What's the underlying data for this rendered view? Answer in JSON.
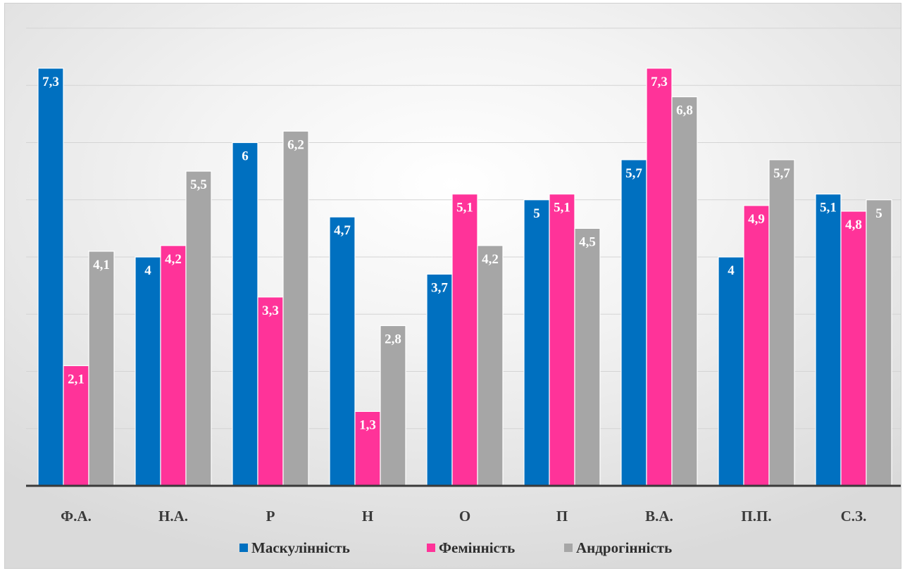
{
  "chart_data": {
    "type": "bar",
    "categories": [
      "Ф.А.",
      "Н.А.",
      "Р",
      "Н",
      "О",
      "П",
      "В.А.",
      "П.П.",
      "С.З."
    ],
    "series": [
      {
        "name": "Маскулінність",
        "color": "#0070c0",
        "values": [
          7.3,
          4,
          6,
          4.7,
          3.7,
          5,
          5.7,
          4,
          5.1
        ],
        "labels": [
          "7,3",
          "4",
          "6",
          "4,7",
          "3,7",
          "5",
          "5,7",
          "4",
          "5,1"
        ]
      },
      {
        "name": "Фемінність",
        "color": "#ff3399",
        "values": [
          2.1,
          4.2,
          3.3,
          1.3,
          5.1,
          5.1,
          7.3,
          4.9,
          4.8
        ],
        "labels": [
          "2,1",
          "4,2",
          "3,3",
          "1,3",
          "5,1",
          "5,1",
          "7,3",
          "4,9",
          "4,8"
        ]
      },
      {
        "name": "Андрогінність",
        "color": "#a6a6a6",
        "values": [
          4.1,
          5.5,
          6.2,
          2.8,
          4.2,
          4.5,
          6.8,
          5.7,
          5
        ],
        "labels": [
          "4,1",
          "5,5",
          "6,2",
          "2,8",
          "4,2",
          "4,5",
          "6,8",
          "5,7",
          "5"
        ]
      }
    ],
    "ylim": [
      0,
      8
    ],
    "grid": true,
    "legend_position": "bottom"
  }
}
